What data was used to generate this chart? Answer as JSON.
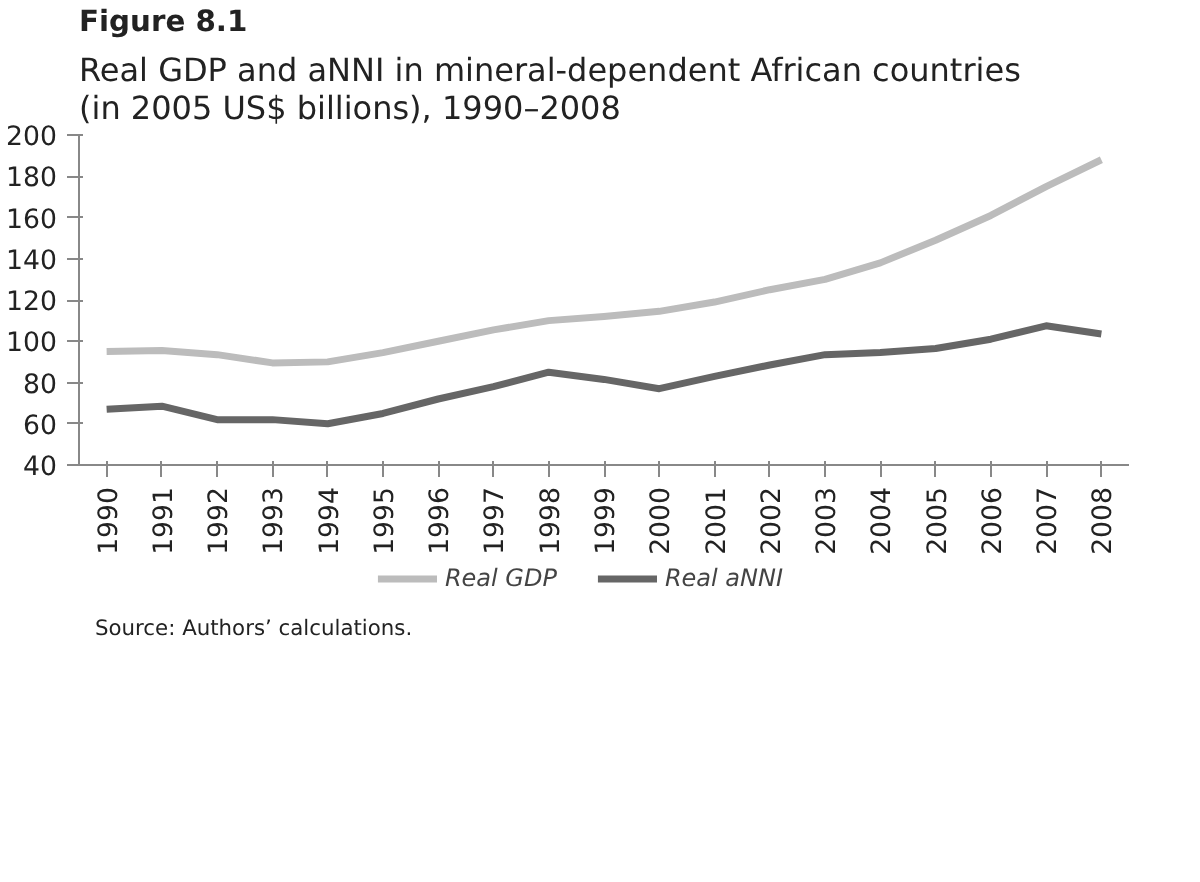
{
  "chart_data": {
    "type": "line",
    "title": "Figure 8.1",
    "subtitle": "Real GDP and aNNI in mineral-dependent African countries\n(in 2005 US$ billions), 1990–2008",
    "categories": [
      "1990",
      "1991",
      "1992",
      "1993",
      "1994",
      "1995",
      "1996",
      "1997",
      "1998",
      "1999",
      "2000",
      "2001",
      "2002",
      "2003",
      "2004",
      "2005",
      "2006",
      "2007",
      "2008"
    ],
    "series": [
      {
        "name": "Real GDP",
        "color": "#bcbcbc",
        "values": [
          95,
          95.5,
          93.5,
          89.5,
          90,
          94.5,
          100,
          105.5,
          110,
          112,
          114.5,
          119,
          125,
          130,
          138,
          149,
          161,
          175,
          188
        ]
      },
      {
        "name": "Real aNNI",
        "color": "#666666",
        "values": [
          67,
          68.5,
          62,
          62,
          60,
          65,
          72,
          78,
          85,
          81.5,
          77,
          83,
          88.5,
          93.5,
          94.5,
          96.5,
          101,
          107.5,
          103.5
        ]
      }
    ],
    "ylim": [
      40,
      200
    ],
    "yticks": [
      40,
      60,
      80,
      100,
      120,
      140,
      160,
      180,
      200
    ],
    "grid": false,
    "legend": "bottom",
    "line_style": "solid",
    "annotations": [
      "Source: Authors’ calculations."
    ]
  }
}
